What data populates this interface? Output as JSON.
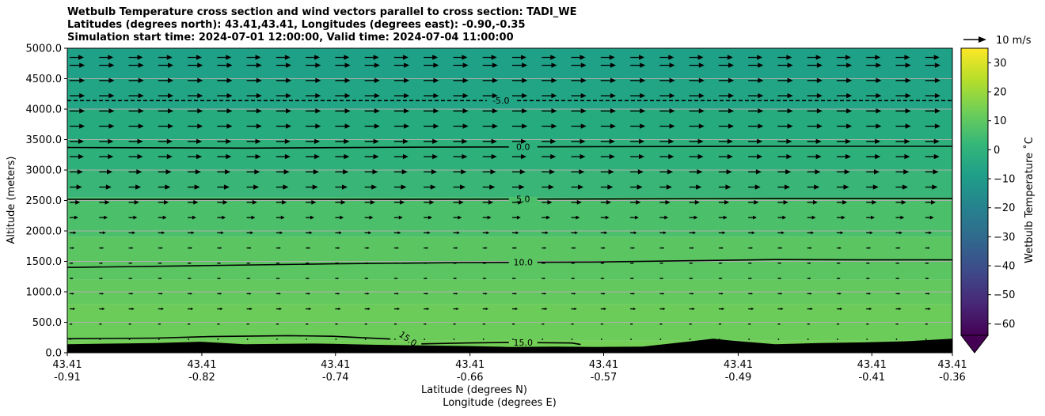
{
  "title": {
    "line1": "Wetbulb Temperature cross section and wind vectors parallel to cross section: TADI_WE",
    "line2": "Latitudes (degrees north): 43.41,43.41, Longitudes (degrees east): -0.90,-0.35",
    "line3": "Simulation start time: 2024-07-01 12:00:00, Valid time: 2024-07-04 11:00:00"
  },
  "chart_data": {
    "type": "heatmap",
    "ylabel": "Altitude (meters)",
    "xlabel_1": "Latitude (degrees N)",
    "xlabel_2": "Longitude (degrees E)",
    "ylim": [
      0,
      5000
    ],
    "y_ticks": [
      "0.0",
      "500.0",
      "1000.0",
      "1500.0",
      "2000.0",
      "2500.0",
      "3000.0",
      "3500.0",
      "4000.0",
      "4500.0",
      "5000.0"
    ],
    "y_tick_values": [
      0,
      500,
      1000,
      1500,
      2000,
      2500,
      3000,
      3500,
      4000,
      4500,
      5000
    ],
    "x_ticks": [
      {
        "lat": "43.41",
        "lon": "-0.91"
      },
      {
        "lat": "43.41",
        "lon": "-0.82"
      },
      {
        "lat": "43.41",
        "lon": "-0.74"
      },
      {
        "lat": "43.41",
        "lon": "-0.66"
      },
      {
        "lat": "43.41",
        "lon": "-0.57"
      },
      {
        "lat": "43.41",
        "lon": "-0.49"
      },
      {
        "lat": "43.41",
        "lon": "-0.41"
      },
      {
        "lat": "43.41",
        "lon": "-0.36"
      }
    ],
    "x_tick_fractions": [
      0,
      0.152,
      0.303,
      0.455,
      0.606,
      0.758,
      0.909,
      1.0
    ],
    "horizontal_grid": true,
    "temperature_bands": [
      {
        "from_alt": 0,
        "to_alt": 200,
        "temp": 17,
        "color": "#73cf55"
      },
      {
        "from_alt": 200,
        "to_alt": 800,
        "temp": 15,
        "color": "#6bcc5a"
      },
      {
        "from_alt": 800,
        "to_alt": 1200,
        "temp": 13,
        "color": "#63c95e"
      },
      {
        "from_alt": 1200,
        "to_alt": 1900,
        "temp": 11,
        "color": "#5bc562"
      },
      {
        "from_alt": 1900,
        "to_alt": 2550,
        "temp": 8,
        "color": "#4bbf69"
      },
      {
        "from_alt": 2550,
        "to_alt": 3000,
        "temp": 4,
        "color": "#38b577"
      },
      {
        "from_alt": 3000,
        "to_alt": 3500,
        "temp": 2,
        "color": "#2eb07a"
      },
      {
        "from_alt": 3500,
        "to_alt": 4000,
        "temp": -1,
        "color": "#26ab7f"
      },
      {
        "from_alt": 4000,
        "to_alt": 4500,
        "temp": -4,
        "color": "#22a584"
      },
      {
        "from_alt": 4500,
        "to_alt": 5000,
        "temp": -6,
        "color": "#1fa187"
      }
    ],
    "contours": [
      {
        "label": "-5.0",
        "dashed": true,
        "label_x": 0.49,
        "points": [
          [
            0,
            4140
          ],
          [
            0.3,
            4140
          ],
          [
            0.6,
            4140
          ],
          [
            1.0,
            4140
          ]
        ]
      },
      {
        "label": "0.0",
        "dashed": false,
        "label_x": 0.515,
        "points": [
          [
            0,
            3370
          ],
          [
            0.2,
            3360
          ],
          [
            0.4,
            3375
          ],
          [
            0.6,
            3385
          ],
          [
            0.8,
            3390
          ],
          [
            1.0,
            3390
          ]
        ]
      },
      {
        "label": "5.0",
        "dashed": false,
        "label_x": 0.515,
        "points": [
          [
            0,
            2520
          ],
          [
            0.3,
            2520
          ],
          [
            0.6,
            2525
          ],
          [
            0.8,
            2535
          ],
          [
            1.0,
            2535
          ]
        ]
      },
      {
        "label": "10.0",
        "dashed": false,
        "label_x": 0.515,
        "points": [
          [
            0,
            1400
          ],
          [
            0.15,
            1430
          ],
          [
            0.3,
            1460
          ],
          [
            0.45,
            1480
          ],
          [
            0.6,
            1490
          ],
          [
            0.7,
            1510
          ],
          [
            0.8,
            1530
          ],
          [
            0.9,
            1525
          ],
          [
            1.0,
            1525
          ]
        ]
      },
      {
        "label": "15.0",
        "dashed": false,
        "label_x": 0.515,
        "points": [
          [
            0.4,
            145
          ],
          [
            0.45,
            160
          ],
          [
            0.5,
            170
          ],
          [
            0.57,
            160
          ],
          [
            0.58,
            135
          ]
        ]
      },
      {
        "label": "15.0",
        "dashed": false,
        "label_x": 0.385,
        "label_rot": 35,
        "points": [
          [
            0,
            230
          ],
          [
            0.1,
            240
          ],
          [
            0.16,
            265
          ],
          [
            0.25,
            280
          ],
          [
            0.3,
            270
          ],
          [
            0.365,
            225
          ]
        ]
      }
    ],
    "terrain": [
      [
        0,
        140
      ],
      [
        0.1,
        160
      ],
      [
        0.15,
        180
      ],
      [
        0.2,
        140
      ],
      [
        0.28,
        150
      ],
      [
        0.3,
        145
      ],
      [
        0.35,
        130
      ],
      [
        0.4,
        120
      ],
      [
        0.45,
        110
      ],
      [
        0.5,
        95
      ],
      [
        0.55,
        100
      ],
      [
        0.6,
        95
      ],
      [
        0.65,
        100
      ],
      [
        0.7,
        180
      ],
      [
        0.73,
        230
      ],
      [
        0.75,
        200
      ],
      [
        0.8,
        140
      ],
      [
        0.85,
        160
      ],
      [
        0.9,
        170
      ],
      [
        0.95,
        190
      ],
      [
        1.0,
        230
      ]
    ],
    "wind_levels": [
      {
        "alt": 4850,
        "speed": 7.5
      },
      {
        "alt": 4720,
        "speed": 8
      },
      {
        "alt": 4470,
        "speed": 8
      },
      {
        "alt": 4220,
        "speed": 8
      },
      {
        "alt": 3970,
        "speed": 8
      },
      {
        "alt": 3720,
        "speed": 8
      },
      {
        "alt": 3470,
        "speed": 7.5
      },
      {
        "alt": 3220,
        "speed": 7.5
      },
      {
        "alt": 2970,
        "speed": 7
      },
      {
        "alt": 2720,
        "speed": 6.5
      },
      {
        "alt": 2470,
        "speed": 5.5
      },
      {
        "alt": 2220,
        "speed": 4.5
      },
      {
        "alt": 1970,
        "speed": 3.5
      },
      {
        "alt": 1720,
        "speed": 2.5
      },
      {
        "alt": 1470,
        "speed": 2
      },
      {
        "alt": 1220,
        "speed": 2
      },
      {
        "alt": 970,
        "speed": 2.5
      },
      {
        "alt": 720,
        "speed": 3
      },
      {
        "alt": 470,
        "speed": 1.5
      },
      {
        "alt": 220,
        "speed": 0.8
      }
    ],
    "wind_columns": 30,
    "quiver_key": {
      "label": "10 m/s",
      "speed": 10
    }
  },
  "colorbar": {
    "label": "Wetbulb Temperature ˚C",
    "min": -64,
    "max": 35,
    "ticks": [
      "30",
      "20",
      "10",
      "0",
      "−10",
      "−20",
      "−30",
      "−40",
      "−50",
      "−60"
    ],
    "tick_values": [
      30,
      20,
      10,
      0,
      -10,
      -20,
      -30,
      -40,
      -50,
      -60
    ],
    "extend": "min",
    "stops": [
      "#440154",
      "#482878",
      "#3e4a89",
      "#31688e",
      "#26828e",
      "#1f9e89",
      "#35b779",
      "#6ece58",
      "#b5de2b",
      "#fde725"
    ]
  }
}
